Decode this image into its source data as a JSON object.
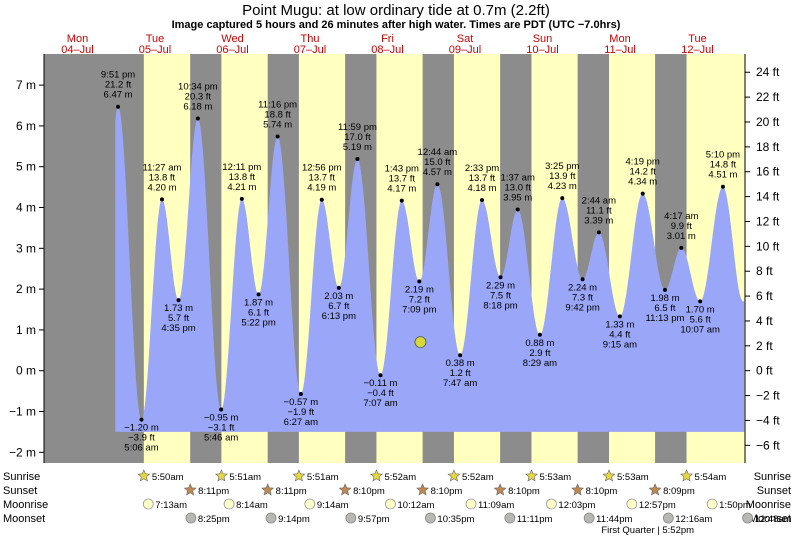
{
  "title": "Point Mugu: at low  ordinary tide at 0.7m (2.2ft)",
  "subtitle": "Image captured 5 hours and 26 minutes after high water. Times are PDT (UTC −7.0hrs)",
  "colors": {
    "night": "#8c8c8c",
    "day": "#ffffc0",
    "water": "#9aa6f8",
    "day_label": "#d00000",
    "current_marker": "#d8d838"
  },
  "chart_data": {
    "type": "area",
    "title": "Point Mugu: at low  ordinary tide at 0.7m (2.2ft)",
    "xlabel": "",
    "ylabel_left": "m",
    "ylabel_right": "ft",
    "ylim_m": [
      -2.25,
      7.55
    ],
    "yticks_m": [
      -2,
      -1,
      0,
      1,
      2,
      3,
      4,
      5,
      6,
      7
    ],
    "ytick_labels_m": [
      "−2 m",
      "−1 m",
      "0 m",
      "1 m",
      "2 m",
      "3 m",
      "4 m",
      "5 m",
      "6 m",
      "7 m"
    ],
    "yticks_ft": [
      -6,
      -4,
      -2,
      0,
      2,
      4,
      6,
      8,
      10,
      12,
      14,
      16,
      18,
      20,
      22,
      24
    ],
    "ytick_labels_ft": [
      "−6 ft",
      "−4 ft",
      "−2 ft",
      "0 ft",
      "2 ft",
      "4 ft",
      "6 ft",
      "8 ft",
      "10 ft",
      "12 ft",
      "14 ft",
      "16 ft",
      "18 ft",
      "20 ft",
      "22 ft",
      "24 ft"
    ],
    "days": [
      {
        "name": "Mon",
        "date": "04–Jul"
      },
      {
        "name": "Tue",
        "date": "05–Jul"
      },
      {
        "name": "Wed",
        "date": "06–Jul"
      },
      {
        "name": "Thu",
        "date": "07–Jul"
      },
      {
        "name": "Fri",
        "date": "08–Jul"
      },
      {
        "name": "Sat",
        "date": "09–Jul"
      },
      {
        "name": "Sun",
        "date": "10–Jul"
      },
      {
        "name": "Mon",
        "date": "11–Jul"
      },
      {
        "name": "Tue",
        "date": "12–Jul"
      }
    ],
    "daylight": [
      {
        "day": "Jul 5",
        "sunrise": "5:50am",
        "sunset": "8:11pm"
      },
      {
        "day": "Jul 6",
        "sunrise": "5:51am",
        "sunset": "8:11pm"
      },
      {
        "day": "Jul 7",
        "sunrise": "5:51am",
        "sunset": "8:10pm"
      },
      {
        "day": "Jul 8",
        "sunrise": "5:52am",
        "sunset": "8:10pm"
      },
      {
        "day": "Jul 9",
        "sunrise": "5:52am",
        "sunset": "8:10pm"
      },
      {
        "day": "Jul 10",
        "sunrise": "5:53am",
        "sunset": "8:10pm"
      },
      {
        "day": "Jul 11",
        "sunrise": "5:53am",
        "sunset": "8:09pm"
      },
      {
        "day": "Jul 12",
        "sunrise": "5:54am",
        "sunset": ""
      }
    ],
    "tide_events": [
      {
        "day": 0,
        "time": "9:51 pm",
        "m": 6.47,
        "ft": "21.2 ft",
        "m_label": "6.47 m",
        "type": "high"
      },
      {
        "day": 1,
        "time": "5:06 am",
        "m": -1.2,
        "ft": "−3.9 ft",
        "m_label": "−1.20 m",
        "type": "low"
      },
      {
        "day": 1,
        "time": "11:27 am",
        "m": 4.2,
        "ft": "13.8 ft",
        "m_label": "4.20 m",
        "type": "high"
      },
      {
        "day": 1,
        "time": "4:35 pm",
        "m": 1.73,
        "ft": "5.7 ft",
        "m_label": "1.73 m",
        "type": "low"
      },
      {
        "day": 1,
        "time": "10:34 pm",
        "m": 6.18,
        "ft": "20.3 ft",
        "m_label": "6.18 m",
        "type": "high"
      },
      {
        "day": 2,
        "time": "5:46 am",
        "m": -0.95,
        "ft": "−3.1 ft",
        "m_label": "−0.95 m",
        "type": "low"
      },
      {
        "day": 2,
        "time": "12:11 pm",
        "m": 4.21,
        "ft": "13.8 ft",
        "m_label": "4.21 m",
        "type": "high"
      },
      {
        "day": 2,
        "time": "5:22 pm",
        "m": 1.87,
        "ft": "6.1 ft",
        "m_label": "1.87 m",
        "type": "low"
      },
      {
        "day": 2,
        "time": "11:16 pm",
        "m": 5.74,
        "ft": "18.8 ft",
        "m_label": "5.74 m",
        "type": "high"
      },
      {
        "day": 3,
        "time": "6:27 am",
        "m": -0.57,
        "ft": "−1.9 ft",
        "m_label": "−0.57 m",
        "type": "low"
      },
      {
        "day": 3,
        "time": "12:56 pm",
        "m": 4.19,
        "ft": "13.7 ft",
        "m_label": "4.19 m",
        "type": "high"
      },
      {
        "day": 3,
        "time": "6:13 pm",
        "m": 2.03,
        "ft": "6.7 ft",
        "m_label": "2.03 m",
        "type": "low"
      },
      {
        "day": 3,
        "time": "11:59 pm",
        "m": 5.19,
        "ft": "17.0 ft",
        "m_label": "5.19 m",
        "type": "high"
      },
      {
        "day": 4,
        "time": "7:07 am",
        "m": -0.11,
        "ft": "−0.4 ft",
        "m_label": "−0.11 m",
        "type": "low"
      },
      {
        "day": 4,
        "time": "1:43 pm",
        "m": 4.17,
        "ft": "13.7 ft",
        "m_label": "4.17 m",
        "type": "high"
      },
      {
        "day": 4,
        "time": "7:09 pm",
        "m": 2.19,
        "ft": "7.2 ft",
        "m_label": "2.19 m",
        "type": "low"
      },
      {
        "day": 5,
        "time": "12:44 am",
        "m": 4.57,
        "ft": "15.0 ft",
        "m_label": "4.57 m",
        "type": "high"
      },
      {
        "day": 5,
        "time": "7:47 am",
        "m": 0.38,
        "ft": "1.2 ft",
        "m_label": "0.38 m",
        "type": "low"
      },
      {
        "day": 5,
        "time": "2:33 pm",
        "m": 4.18,
        "ft": "13.7 ft",
        "m_label": "4.18 m",
        "type": "high"
      },
      {
        "day": 5,
        "time": "8:18 pm",
        "m": 2.29,
        "ft": "7.5 ft",
        "m_label": "2.29 m",
        "type": "low"
      },
      {
        "day": 6,
        "time": "1:37 am",
        "m": 3.95,
        "ft": "13.0 ft",
        "m_label": "3.95 m",
        "type": "high"
      },
      {
        "day": 6,
        "time": "8:29 am",
        "m": 0.88,
        "ft": "2.9 ft",
        "m_label": "0.88 m",
        "type": "low"
      },
      {
        "day": 6,
        "time": "3:25 pm",
        "m": 4.23,
        "ft": "13.9 ft",
        "m_label": "4.23 m",
        "type": "high"
      },
      {
        "day": 6,
        "time": "9:42 pm",
        "m": 2.24,
        "ft": "7.3 ft",
        "m_label": "2.24 m",
        "type": "low"
      },
      {
        "day": 7,
        "time": "2:44 am",
        "m": 3.39,
        "ft": "11.1 ft",
        "m_label": "3.39 m",
        "type": "high"
      },
      {
        "day": 7,
        "time": "9:15 am",
        "m": 1.33,
        "ft": "4.4 ft",
        "m_label": "1.33 m",
        "type": "low"
      },
      {
        "day": 7,
        "time": "4:19 pm",
        "m": 4.34,
        "ft": "14.2 ft",
        "m_label": "4.34 m",
        "type": "high"
      },
      {
        "day": 7,
        "time": "11:13 pm",
        "m": 1.98,
        "ft": "6.5 ft",
        "m_label": "1.98 m",
        "type": "low"
      },
      {
        "day": 8,
        "time": "4:17 am",
        "m": 3.01,
        "ft": "9.9 ft",
        "m_label": "3.01 m",
        "type": "high"
      },
      {
        "day": 8,
        "time": "10:07 am",
        "m": 1.7,
        "ft": "5.6 ft",
        "m_label": "1.70 m",
        "type": "low"
      },
      {
        "day": 8,
        "time": "5:10 pm",
        "m": 4.51,
        "ft": "14.8 ft",
        "m_label": "4.51 m",
        "type": "high"
      }
    ],
    "current_level_m": 0.7,
    "moon": {
      "moonrise": [
        "7:13am",
        "8:14am",
        "9:14am",
        "10:12am",
        "11:09am",
        "12:03pm",
        "12:57pm",
        "1:50pm"
      ],
      "moonset": [
        "8:25pm",
        "9:14pm",
        "9:57pm",
        "10:35pm",
        "11:11pm",
        "11:44pm",
        "12:16am",
        "12:48am"
      ],
      "phase": "First Quarter | 5:52pm"
    },
    "row_titles": {
      "sunrise": "Sunrise",
      "sunset": "Sunset",
      "moonrise": "Moonrise",
      "moonset": "Moonset"
    }
  }
}
